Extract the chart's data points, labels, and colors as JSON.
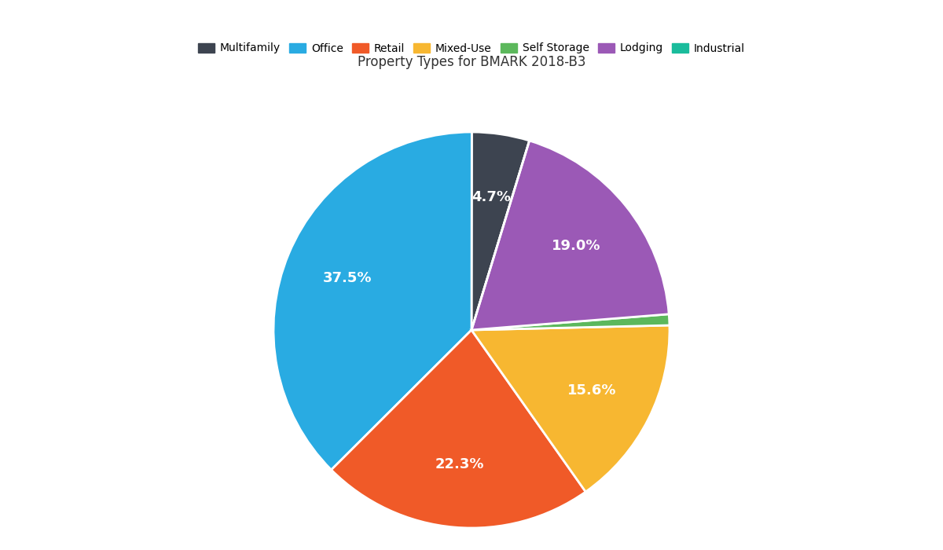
{
  "title": "Property Types for BMARK 2018-B3",
  "labels": [
    "Multifamily",
    "Office",
    "Retail",
    "Mixed-Use",
    "Self Storage",
    "Lodging",
    "Industrial"
  ],
  "values": [
    4.7,
    37.5,
    22.3,
    15.6,
    0.9,
    19.0,
    0.0
  ],
  "colors": [
    "#3d4450",
    "#29abe2",
    "#f05a28",
    "#f7b731",
    "#5cb85c",
    "#9b59b6",
    "#1abc9c"
  ],
  "background_color": "#ffffff",
  "title_fontsize": 12,
  "legend_fontsize": 10,
  "label_fontsize": 13,
  "startangle": 73,
  "wedge_linewidth": 2.0,
  "wedge_edgecolor": "#ffffff",
  "pctdistance": 0.68
}
